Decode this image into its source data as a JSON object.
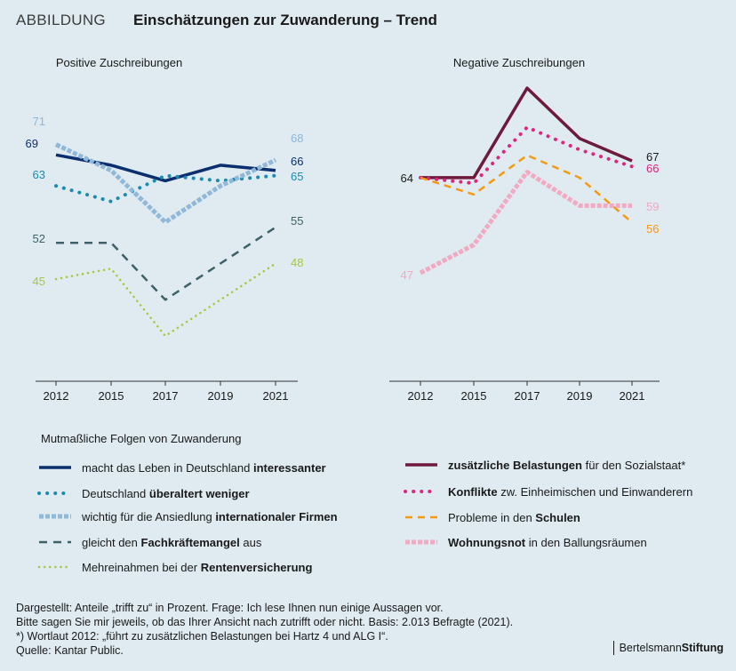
{
  "header": {
    "tag": "ABBILDUNG",
    "title": "Einschätzungen zur Zuwanderung – Trend"
  },
  "colors": {
    "navy": "#0b2f6e",
    "teal_dots": "#1a8cb0",
    "lightblue": "#8fb8d9",
    "darkgreen": "#3c6166",
    "lime": "#a5c93a",
    "maroon": "#6e1a3c",
    "pink": "#e0257f",
    "orange": "#f59a10",
    "lightpink": "#f2a9c2"
  },
  "chart_data": [
    {
      "type": "line",
      "title": "Positive Zuschreibungen",
      "x": [
        "2012",
        "2015",
        "2017",
        "2019",
        "2021"
      ],
      "series": [
        {
          "name": "macht das Leben in Deutschland interessanter",
          "values": [
            69,
            67,
            64,
            67,
            66
          ],
          "start_label": "69",
          "end_label": "66"
        },
        {
          "name": "Deutschland überaltert weniger",
          "values": [
            63,
            60,
            65,
            64,
            65
          ],
          "start_label": "63",
          "end_label": "65"
        },
        {
          "name": "wichtig für die Ansiedlung internationaler Firmen",
          "values": [
            71,
            66,
            56,
            63,
            68
          ],
          "start_label": "71",
          "end_label": "68"
        },
        {
          "name": "gleicht den Fachkräftemangel aus",
          "values": [
            52,
            52,
            41,
            48,
            55
          ],
          "start_label": "52",
          "end_label": "55"
        },
        {
          "name": "Mehreinahmen bei der Rentenversicherung",
          "values": [
            45,
            47,
            34,
            41,
            48
          ],
          "start_label": "45",
          "end_label": "48"
        }
      ]
    },
    {
      "type": "line",
      "title": "Negative Zuschreibungen",
      "x": [
        "2012",
        "2015",
        "2017",
        "2019",
        "2021"
      ],
      "series": [
        {
          "name": "zusätzliche Belastungen für den Sozialstaat*",
          "values": [
            64,
            64,
            80,
            71,
            67
          ],
          "start_label": "64",
          "end_label": "67"
        },
        {
          "name": "Konflikte zw. Einheimischen und Einwanderern",
          "values": [
            64,
            63,
            73,
            69,
            66
          ],
          "end_label": "66"
        },
        {
          "name": "Probleme in den Schulen",
          "values": [
            64,
            61,
            68,
            64,
            56
          ],
          "end_label": "56"
        },
        {
          "name": "Wohnungsnot in den Ballungsräumen",
          "values": [
            47,
            52,
            65,
            59,
            59
          ],
          "start_label": "47",
          "end_label": "59"
        }
      ]
    }
  ],
  "legend": {
    "title": "Mutmaßliche Folgen von Zuwanderung",
    "items": [
      {
        "pre": "macht das Leben in Deutschland ",
        "bold": "interessanter",
        "post": ""
      },
      {
        "pre": "Deutschland ",
        "bold": "überaltert weniger",
        "post": ""
      },
      {
        "pre": "wichtig für die Ansiedlung ",
        "bold": "internationaler Firmen",
        "post": ""
      },
      {
        "pre": "gleicht den ",
        "bold": "Fachkräftemangel",
        "post": " aus"
      },
      {
        "pre": "Mehreinahmen bei der ",
        "bold": "Rentenversicherung",
        "post": ""
      },
      {
        "pre": "",
        "bold": "zusätzliche Belastungen",
        "post": " für den Sozialstaat*"
      },
      {
        "pre": "",
        "bold": "Konflikte",
        "post": " zw. Einheimischen und Einwanderern"
      },
      {
        "pre": "Probleme in den ",
        "bold": "Schulen",
        "post": ""
      },
      {
        "pre": "",
        "bold": "Wohnungsnot",
        "post": " in den Ballungsräumen"
      }
    ]
  },
  "notes": [
    "Dargestellt: Anteile „trifft zu“ in Prozent. Frage: Ich lese Ihnen nun einige Aussagen vor.",
    "Bitte sagen Sie mir jeweils, ob das Ihrer Ansicht nach zutrifft oder nicht. Basis: 2.013 Befragte (2021).",
    "*) Wortlaut 2012: „führt zu zusätzlichen Belastungen bei Hartz 4 und ALG I“.",
    "Quelle: Kantar Public."
  ],
  "brand": {
    "regular": "Bertelsmann",
    "bold": "Stiftung"
  }
}
